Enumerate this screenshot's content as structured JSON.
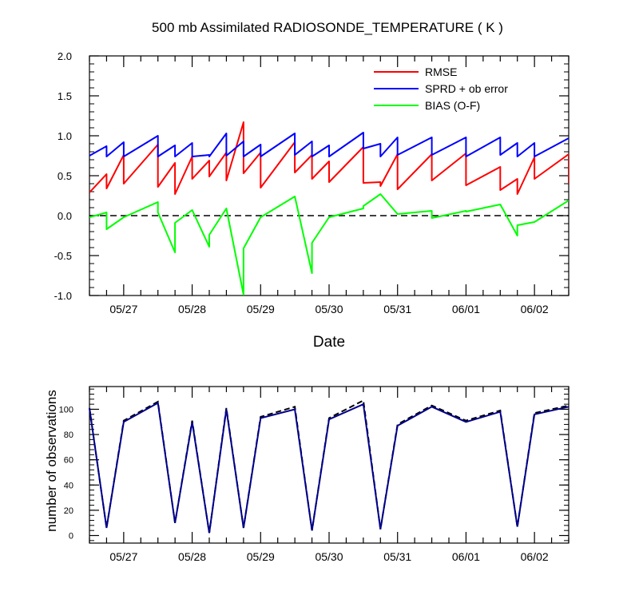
{
  "chart_data": [
    {
      "type": "line",
      "title": "500 mb Assimilated RADIOSONDE_TEMPERATURE ( K )",
      "xlabel": "Date",
      "ylabel": "",
      "x_tick_labels": [
        "05/27",
        "05/28",
        "05/29",
        "05/30",
        "05/31",
        "06/01",
        "06/02"
      ],
      "y_tick_labels": [
        "2.0",
        "1.5",
        "1.0",
        "0.5",
        "0.0",
        "-0.5",
        "-1.0"
      ],
      "ylim": [
        -1.0,
        2.0
      ],
      "legend_position": "top-right",
      "zero_line": "dashed",
      "series": [
        {
          "name": "RMSE",
          "color": "#ff0000",
          "points": [
            [
              26.0,
              0.29
            ],
            [
              26.25,
              0.52
            ],
            [
              26.25,
              0.34
            ],
            [
              26.5,
              0.76
            ],
            [
              26.5,
              0.4
            ],
            [
              27.0,
              0.89
            ],
            [
              27.0,
              0.36
            ],
            [
              27.25,
              0.66
            ],
            [
              27.25,
              0.27
            ],
            [
              27.5,
              0.74
            ],
            [
              27.5,
              0.46
            ],
            [
              27.75,
              0.69
            ],
            [
              27.75,
              0.49
            ],
            [
              28.0,
              0.79
            ],
            [
              28.0,
              0.44
            ],
            [
              28.25,
              1.17
            ],
            [
              28.25,
              0.53
            ],
            [
              28.5,
              0.79
            ],
            [
              28.5,
              0.35
            ],
            [
              29.0,
              0.92
            ],
            [
              29.0,
              0.54
            ],
            [
              29.25,
              0.76
            ],
            [
              29.25,
              0.46
            ],
            [
              29.5,
              0.68
            ],
            [
              29.5,
              0.42
            ],
            [
              30.0,
              0.86
            ],
            [
              30.0,
              0.41
            ],
            [
              30.25,
              0.42
            ],
            [
              30.25,
              0.37
            ],
            [
              30.5,
              0.77
            ],
            [
              30.5,
              0.33
            ],
            [
              31.0,
              0.77
            ],
            [
              31.0,
              0.44
            ],
            [
              31.5,
              0.78
            ],
            [
              31.5,
              0.38
            ],
            [
              32.0,
              0.61
            ],
            [
              32.0,
              0.32
            ],
            [
              32.25,
              0.46
            ],
            [
              32.25,
              0.27
            ],
            [
              32.5,
              0.73
            ],
            [
              32.5,
              0.46
            ],
            [
              33.0,
              0.77
            ],
            [
              33.0,
              0.4
            ]
          ]
        },
        {
          "name": "SPRD + ob error",
          "color": "#0000ff",
          "points": [
            [
              26.0,
              0.75
            ],
            [
              26.25,
              0.87
            ],
            [
              26.25,
              0.74
            ],
            [
              26.5,
              0.92
            ],
            [
              26.5,
              0.74
            ],
            [
              27.0,
              1.0
            ],
            [
              27.0,
              0.74
            ],
            [
              27.25,
              0.88
            ],
            [
              27.25,
              0.74
            ],
            [
              27.5,
              0.91
            ],
            [
              27.5,
              0.74
            ],
            [
              27.75,
              0.76
            ],
            [
              27.75,
              0.74
            ],
            [
              28.0,
              1.03
            ],
            [
              28.0,
              0.75
            ],
            [
              28.25,
              0.93
            ],
            [
              28.25,
              0.74
            ],
            [
              28.5,
              0.89
            ],
            [
              28.5,
              0.74
            ],
            [
              29.0,
              1.03
            ],
            [
              29.0,
              0.76
            ],
            [
              29.25,
              0.93
            ],
            [
              29.25,
              0.74
            ],
            [
              29.5,
              0.88
            ],
            [
              29.5,
              0.74
            ],
            [
              30.0,
              1.04
            ],
            [
              30.0,
              0.84
            ],
            [
              30.25,
              0.9
            ],
            [
              30.25,
              0.74
            ],
            [
              30.5,
              0.98
            ],
            [
              30.5,
              0.76
            ],
            [
              31.0,
              0.98
            ],
            [
              31.0,
              0.76
            ],
            [
              31.5,
              0.98
            ],
            [
              31.5,
              0.74
            ],
            [
              32.0,
              0.98
            ],
            [
              32.0,
              0.76
            ],
            [
              32.25,
              0.91
            ],
            [
              32.25,
              0.74
            ],
            [
              32.5,
              0.91
            ],
            [
              32.5,
              0.74
            ],
            [
              33.0,
              0.97
            ],
            [
              33.0,
              0.96
            ]
          ]
        },
        {
          "name": "BIAS (O-F)",
          "color": "#00ff00",
          "points": [
            [
              26.0,
              -0.02
            ],
            [
              26.25,
              0.04
            ],
            [
              26.25,
              -0.17
            ],
            [
              26.5,
              -0.02
            ],
            [
              27.0,
              0.17
            ],
            [
              27.0,
              0.04
            ],
            [
              27.25,
              -0.46
            ],
            [
              27.25,
              -0.09
            ],
            [
              27.5,
              0.07
            ],
            [
              27.75,
              -0.39
            ],
            [
              27.75,
              -0.24
            ],
            [
              28.0,
              0.09
            ],
            [
              28.25,
              -0.99
            ],
            [
              28.25,
              -0.41
            ],
            [
              28.5,
              -0.02
            ],
            [
              29.0,
              0.24
            ],
            [
              29.25,
              -0.72
            ],
            [
              29.25,
              -0.34
            ],
            [
              29.5,
              -0.02
            ],
            [
              30.0,
              0.09
            ],
            [
              30.0,
              0.12
            ],
            [
              30.25,
              0.27
            ],
            [
              30.5,
              0.02
            ],
            [
              31.0,
              0.06
            ],
            [
              31.0,
              -0.03
            ],
            [
              31.5,
              0.06
            ],
            [
              31.5,
              0.05
            ],
            [
              32.0,
              0.14
            ],
            [
              32.25,
              -0.25
            ],
            [
              32.25,
              -0.12
            ],
            [
              32.5,
              -0.08
            ],
            [
              33.0,
              0.19
            ]
          ]
        }
      ]
    },
    {
      "type": "line",
      "title": "",
      "xlabel": "",
      "ylabel": "number of observations",
      "x_tick_labels": [
        "05/27",
        "05/28",
        "05/29",
        "05/30",
        "05/31",
        "06/01",
        "06/02"
      ],
      "y_tick_labels": [
        "100",
        "80",
        "60",
        "40",
        "20",
        "0"
      ],
      "ylim": [
        -6,
        118
      ],
      "series": [
        {
          "color": "#000000",
          "dash": "dashed",
          "points": [
            [
              26.0,
              101
            ],
            [
              26.25,
              6
            ],
            [
              26.5,
              91
            ],
            [
              27.0,
              106
            ],
            [
              27.25,
              10
            ],
            [
              27.5,
              91
            ],
            [
              27.75,
              2
            ],
            [
              28.0,
              101
            ],
            [
              28.25,
              6
            ],
            [
              28.5,
              94
            ],
            [
              29.0,
              102
            ],
            [
              29.25,
              4
            ],
            [
              29.5,
              93
            ],
            [
              30.0,
              107
            ],
            [
              30.25,
              5
            ],
            [
              30.5,
              88
            ],
            [
              31.0,
              103
            ],
            [
              31.5,
              91
            ],
            [
              32.0,
              99
            ],
            [
              32.25,
              7
            ],
            [
              32.5,
              97
            ],
            [
              33.0,
              103
            ]
          ]
        },
        {
          "color": "#00008b",
          "dash": "solid",
          "points": [
            [
              26.0,
              101
            ],
            [
              26.25,
              6
            ],
            [
              26.5,
              90
            ],
            [
              27.0,
              105
            ],
            [
              27.25,
              10
            ],
            [
              27.5,
              90
            ],
            [
              27.75,
              2
            ],
            [
              28.0,
              100
            ],
            [
              28.25,
              6
            ],
            [
              28.5,
              93
            ],
            [
              29.0,
              100
            ],
            [
              29.25,
              4
            ],
            [
              29.5,
              92
            ],
            [
              30.0,
              104
            ],
            [
              30.25,
              5
            ],
            [
              30.5,
              87
            ],
            [
              31.0,
              102
            ],
            [
              31.5,
              90
            ],
            [
              32.0,
              98
            ],
            [
              32.25,
              7
            ],
            [
              32.5,
              96
            ],
            [
              33.0,
              102
            ]
          ]
        }
      ]
    }
  ]
}
